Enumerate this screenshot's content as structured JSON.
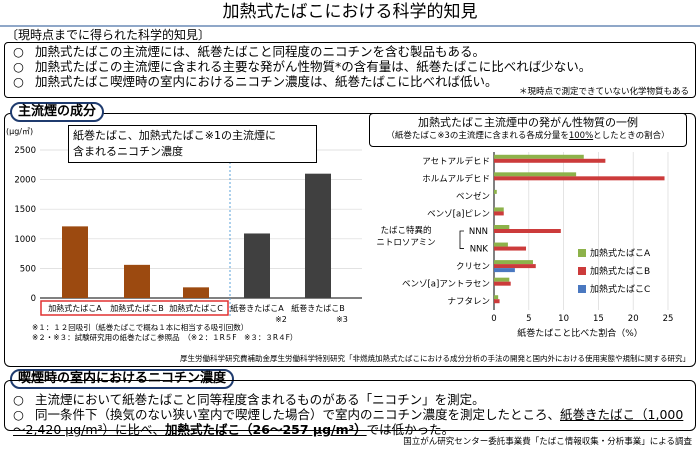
{
  "title": "加熱式たばこにおける科学的知見",
  "findings_heading": "〔現時点までに得られた科学的知見〕",
  "findings": [
    {
      "bullet": "○",
      "text": "加熱式たばこの主流煙には、紙巻たばこと同程度のニコチンを含む製品もある。"
    },
    {
      "bullet": "○",
      "text": "加熱式たばこの主流煙に含まれる主要な発がん性物質*の含有量は、紙巻たばこに比べれば少ない。"
    },
    {
      "bullet": "○",
      "text": "加熱式たばこ喫煙時の室内におけるニコチン濃度は、紙巻たばこに比べれば低い。"
    }
  ],
  "findings_footnote": "＊現時点で測定できていない化学物質もある",
  "section1_tag": "主流煙の成分",
  "section2_tag": "喫煙時の室内におけるニコチン濃度",
  "left_chart": {
    "callout_line1": "紙巻たばこ、加熱式たばこ※1の主流煙に",
    "callout_line2": "含まれるニコチン濃度"
  },
  "right_chart": {
    "title": "加熱式たばこ主流煙中の発がん性物質の一例",
    "subtitle_prefix": "（紙巻たばこ※3の主流煙に含まれる各成分量を",
    "subtitle_underlined": "100%",
    "subtitle_suffix": "としたときの割合）"
  },
  "left_notes": [
    "※１：１２回吸引（紙巻たばこで概ね１本に相当する吸引回数）",
    "※２・※３：試験研究用の紙巻たばこ参照品　（※２：１R５F　※３：３R４F）"
  ],
  "source1": "厚生労働科学研究費補助金厚生労働科学特別研究「非燃焼加熱式たばこにおける成分分析の手法の開発と国内外における使用実態や規制に関する研究」",
  "section2": {
    "line1_bullet": "○",
    "line1": "主流煙において紙巻たばこと同等程度含まれるものがある「ニコチン」を測定。",
    "line2_bullet": "○",
    "line2_pre": "同一条件下（換気のない狭い室内で喫煙した場合）で室内のニコチン濃度を測定したところ、",
    "line2_ul": "紙巻きたばこ（1,000",
    "line3_ul": "～2,420 μg/m³）に比べ、",
    "line3_bold": "加熱式たばこ（26～257 μg/m³）",
    "line3_end": "では低かった。"
  },
  "source2": "国立がん研究センター委託事業費「たばこ情報収集・分析事業」による調査",
  "chart_data": [
    {
      "type": "bar",
      "title": "紙巻たばこ、加熱式たばこ※1の主流煙に含まれるニコチン濃度",
      "ylabel": "(μg/㎥)",
      "ylim": [
        0,
        2500
      ],
      "yticks": [
        "0",
        "500",
        "1000",
        "1500",
        "2000",
        "2500"
      ],
      "categories": [
        "加熱式たばこA",
        "加熱式たばこB",
        "加熱式たばこC",
        "紙巻きたばこA",
        "紙巻きたばこB"
      ],
      "category_notes": [
        "",
        "",
        "",
        "※2",
        "※3"
      ],
      "values": [
        1210,
        560,
        180,
        1090,
        2100
      ],
      "colors": [
        "#9c4a10",
        "#9c4a10",
        "#9c4a10",
        "#404040",
        "#404040"
      ],
      "highlight_box_categories": [
        "加熱式たばこA",
        "加熱式たばこB",
        "加熱式たばこC"
      ],
      "highlight_color": "#e03030"
    },
    {
      "type": "bar",
      "orientation": "horizontal",
      "title": "加熱式たばこ主流煙中の発がん性物質の一例",
      "xlabel": "紙巻たばこと比べた割合（%）",
      "xlim": [
        0,
        25
      ],
      "xticks": [
        "0",
        "5",
        "10",
        "15",
        "20",
        "25"
      ],
      "categories": [
        "アセトアルデヒド",
        "ホルムアルデヒド",
        "ベンゼン",
        "ベンゾ[a]ピレン",
        "NNN",
        "NNK",
        "クリセン",
        "ベンゾ[a]アントラセン",
        "ナフタレン"
      ],
      "group_label_line1": "たばこ特異的",
      "group_label_line2": "ニトロソアミン",
      "series": [
        {
          "name": "加熱式たばこA",
          "color": "#8db24a",
          "values": [
            12.9,
            11.8,
            0.4,
            1.4,
            2.2,
            2.0,
            5.6,
            2.2,
            0.6
          ]
        },
        {
          "name": "加熱式たばこB",
          "color": "#cc3b3b",
          "values": [
            16.0,
            24.5,
            0.0,
            1.4,
            9.6,
            4.6,
            6.0,
            2.4,
            0.8
          ]
        },
        {
          "name": "加熱式たばこC",
          "color": "#4a78c0",
          "values": [
            0.0,
            0.0,
            0.0,
            0.0,
            0.0,
            0.0,
            3.0,
            0.0,
            0.0
          ]
        }
      ]
    }
  ]
}
